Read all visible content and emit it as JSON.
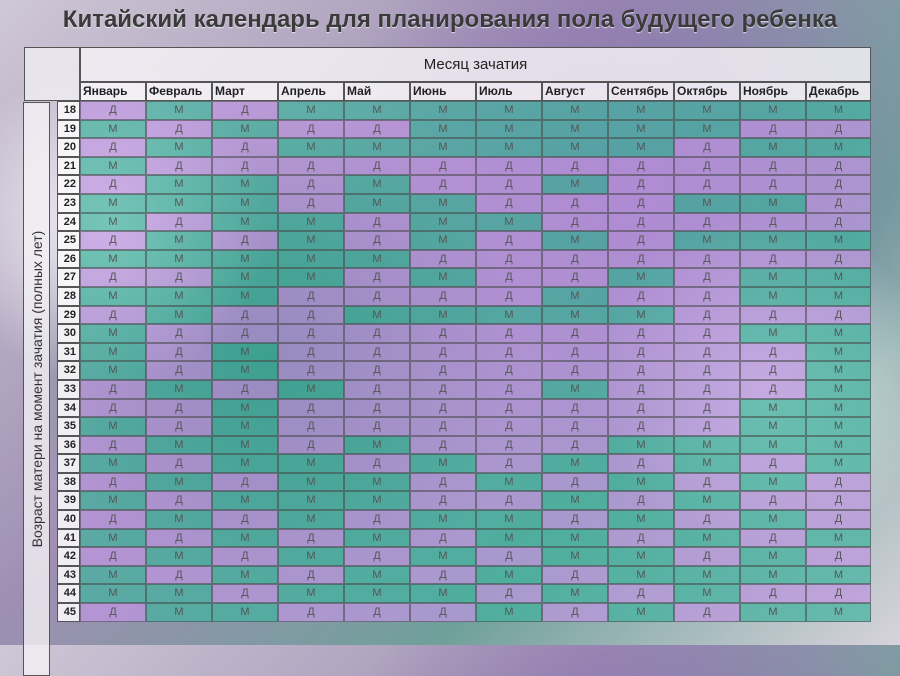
{
  "title": "Китайский календарь для планирования пола будущего ребенка",
  "header": "Месяц зачатия",
  "side_label": "Возраст матери на момент зачатия (полных лет)",
  "months": [
    "Январь",
    "Февраль",
    "Март",
    "Апрель",
    "Май",
    "Июнь",
    "Июль",
    "Август",
    "Сентябрь",
    "Октябрь",
    "Ноябрь",
    "Декабрь"
  ],
  "colors": {
    "boy": "#42b3a0",
    "girl": "#be96e1"
  },
  "rows": [
    {
      "age": "18",
      "cells": [
        "Д",
        "М",
        "Д",
        "М",
        "М",
        "М",
        "М",
        "М",
        "М",
        "М",
        "М",
        "М"
      ]
    },
    {
      "age": "19",
      "cells": [
        "М",
        "Д",
        "М",
        "Д",
        "Д",
        "М",
        "М",
        "М",
        "М",
        "М",
        "Д",
        "Д"
      ]
    },
    {
      "age": "20",
      "cells": [
        "Д",
        "М",
        "Д",
        "М",
        "М",
        "М",
        "М",
        "М",
        "М",
        "Д",
        "М",
        "М"
      ]
    },
    {
      "age": "21",
      "cells": [
        "М",
        "Д",
        "Д",
        "Д",
        "Д",
        "Д",
        "Д",
        "Д",
        "Д",
        "Д",
        "Д",
        "Д"
      ]
    },
    {
      "age": "22",
      "cells": [
        "Д",
        "М",
        "М",
        "Д",
        "М",
        "Д",
        "Д",
        "М",
        "Д",
        "Д",
        "Д",
        "Д"
      ]
    },
    {
      "age": "23",
      "cells": [
        "М",
        "М",
        "М",
        "Д",
        "М",
        "М",
        "Д",
        "Д",
        "Д",
        "М",
        "М",
        "Д"
      ]
    },
    {
      "age": "24",
      "cells": [
        "М",
        "Д",
        "М",
        "М",
        "Д",
        "М",
        "М",
        "Д",
        "Д",
        "Д",
        "Д",
        "Д"
      ]
    },
    {
      "age": "25",
      "cells": [
        "Д",
        "М",
        "Д",
        "М",
        "Д",
        "М",
        "Д",
        "М",
        "Д",
        "М",
        "М",
        "М"
      ]
    },
    {
      "age": "26",
      "cells": [
        "М",
        "М",
        "М",
        "М",
        "М",
        "Д",
        "Д",
        "Д",
        "Д",
        "Д",
        "Д",
        "Д"
      ]
    },
    {
      "age": "27",
      "cells": [
        "Д",
        "Д",
        "М",
        "М",
        "Д",
        "М",
        "Д",
        "Д",
        "М",
        "Д",
        "М",
        "М"
      ]
    },
    {
      "age": "28",
      "cells": [
        "М",
        "М",
        "М",
        "Д",
        "Д",
        "Д",
        "Д",
        "М",
        "Д",
        "Д",
        "М",
        "М"
      ]
    },
    {
      "age": "29",
      "cells": [
        "Д",
        "М",
        "Д",
        "Д",
        "М",
        "М",
        "М",
        "М",
        "М",
        "Д",
        "Д",
        "Д"
      ]
    },
    {
      "age": "30",
      "cells": [
        "М",
        "Д",
        "Д",
        "Д",
        "Д",
        "Д",
        "Д",
        "Д",
        "Д",
        "Д",
        "М",
        "М"
      ]
    },
    {
      "age": "31",
      "cells": [
        "М",
        "Д",
        "М",
        "Д",
        "Д",
        "Д",
        "Д",
        "Д",
        "Д",
        "Д",
        "Д",
        "М"
      ]
    },
    {
      "age": "32",
      "cells": [
        "М",
        "Д",
        "М",
        "Д",
        "Д",
        "Д",
        "Д",
        "Д",
        "Д",
        "Д",
        "Д",
        "М"
      ]
    },
    {
      "age": "33",
      "cells": [
        "Д",
        "М",
        "Д",
        "М",
        "Д",
        "Д",
        "Д",
        "М",
        "Д",
        "Д",
        "Д",
        "М"
      ]
    },
    {
      "age": "34",
      "cells": [
        "Д",
        "Д",
        "М",
        "Д",
        "Д",
        "Д",
        "Д",
        "Д",
        "Д",
        "Д",
        "М",
        "М"
      ]
    },
    {
      "age": "35",
      "cells": [
        "М",
        "Д",
        "М",
        "Д",
        "Д",
        "Д",
        "Д",
        "Д",
        "Д",
        "Д",
        "М",
        "М"
      ]
    },
    {
      "age": "36",
      "cells": [
        "Д",
        "М",
        "М",
        "Д",
        "М",
        "Д",
        "Д",
        "Д",
        "М",
        "М",
        "М",
        "М"
      ]
    },
    {
      "age": "37",
      "cells": [
        "М",
        "Д",
        "М",
        "М",
        "Д",
        "М",
        "Д",
        "М",
        "Д",
        "М",
        "Д",
        "М"
      ]
    },
    {
      "age": "38",
      "cells": [
        "Д",
        "М",
        "Д",
        "М",
        "М",
        "Д",
        "М",
        "Д",
        "М",
        "Д",
        "М",
        "Д"
      ]
    },
    {
      "age": "39",
      "cells": [
        "М",
        "Д",
        "М",
        "М",
        "М",
        "Д",
        "Д",
        "М",
        "Д",
        "М",
        "Д",
        "Д"
      ]
    },
    {
      "age": "40",
      "cells": [
        "Д",
        "М",
        "Д",
        "М",
        "Д",
        "М",
        "М",
        "Д",
        "М",
        "Д",
        "М",
        "Д"
      ]
    },
    {
      "age": "41",
      "cells": [
        "М",
        "Д",
        "М",
        "Д",
        "М",
        "Д",
        "М",
        "М",
        "Д",
        "М",
        "Д",
        "М"
      ]
    },
    {
      "age": "42",
      "cells": [
        "Д",
        "М",
        "Д",
        "М",
        "Д",
        "М",
        "Д",
        "М",
        "М",
        "Д",
        "М",
        "Д"
      ]
    },
    {
      "age": "43",
      "cells": [
        "М",
        "Д",
        "М",
        "Д",
        "М",
        "Д",
        "М",
        "Д",
        "М",
        "М",
        "М",
        "М"
      ]
    },
    {
      "age": "44",
      "cells": [
        "М",
        "М",
        "Д",
        "М",
        "М",
        "М",
        "Д",
        "М",
        "Д",
        "М",
        "Д",
        "Д"
      ]
    },
    {
      "age": "45",
      "cells": [
        "Д",
        "М",
        "М",
        "Д",
        "Д",
        "Д",
        "М",
        "Д",
        "М",
        "Д",
        "М",
        "М"
      ]
    }
  ]
}
